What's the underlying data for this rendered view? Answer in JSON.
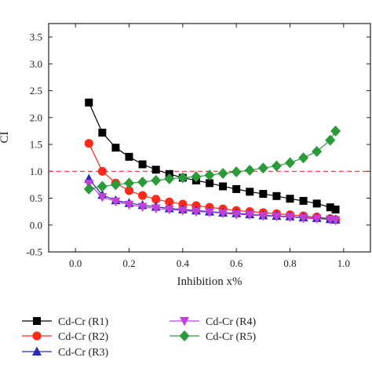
{
  "chart_data": {
    "type": "line",
    "xlabel": "Inhibition x%",
    "ylabel": "CI",
    "xlim": [
      -0.1,
      1.1
    ],
    "ylim": [
      -0.5,
      3.75
    ],
    "xticks": [
      "0.0",
      "0.2",
      "0.4",
      "0.6",
      "0.8",
      "1.0"
    ],
    "yticks": [
      "-0.5",
      "0.0",
      "0.5",
      "1.0",
      "1.5",
      "2.0",
      "2.5",
      "3.0",
      "3.5"
    ],
    "reference_line": {
      "y": 1.0,
      "color": "#e8392a",
      "style": "dashed"
    },
    "grid": false,
    "legend_position": "bottom",
    "series": [
      {
        "name": "Cd-Cr (R1)",
        "marker": "square",
        "color": "#000000",
        "x": [
          0.05,
          0.1,
          0.15,
          0.2,
          0.25,
          0.3,
          0.35,
          0.4,
          0.45,
          0.5,
          0.55,
          0.6,
          0.65,
          0.7,
          0.75,
          0.8,
          0.85,
          0.9,
          0.95,
          0.97
        ],
        "y": [
          2.28,
          1.72,
          1.44,
          1.27,
          1.13,
          1.03,
          0.95,
          0.88,
          0.83,
          0.78,
          0.72,
          0.67,
          0.62,
          0.58,
          0.54,
          0.49,
          0.45,
          0.4,
          0.33,
          0.29
        ]
      },
      {
        "name": "Cd-Cr (R2)",
        "marker": "circle",
        "color": "#ff2a1a",
        "x": [
          0.05,
          0.1,
          0.15,
          0.2,
          0.25,
          0.3,
          0.35,
          0.4,
          0.45,
          0.5,
          0.55,
          0.6,
          0.65,
          0.7,
          0.75,
          0.8,
          0.85,
          0.9,
          0.95,
          0.97
        ],
        "y": [
          1.52,
          1.0,
          0.78,
          0.64,
          0.55,
          0.48,
          0.43,
          0.39,
          0.36,
          0.33,
          0.3,
          0.27,
          0.25,
          0.23,
          0.21,
          0.19,
          0.17,
          0.15,
          0.12,
          0.1
        ]
      },
      {
        "name": "Cd-Cr (R3)",
        "marker": "triangle-up",
        "color": "#2a2ab8",
        "x": [
          0.05,
          0.1,
          0.15,
          0.2,
          0.25,
          0.3,
          0.35,
          0.4,
          0.45,
          0.5,
          0.55,
          0.6,
          0.65,
          0.7,
          0.75,
          0.8,
          0.85,
          0.9,
          0.95,
          0.97
        ],
        "y": [
          0.86,
          0.56,
          0.46,
          0.41,
          0.37,
          0.34,
          0.31,
          0.29,
          0.27,
          0.25,
          0.23,
          0.22,
          0.2,
          0.18,
          0.17,
          0.16,
          0.14,
          0.13,
          0.11,
          0.1
        ]
      },
      {
        "name": "Cd-Cr (R4)",
        "marker": "triangle-down",
        "color": "#c040d8",
        "x": [
          0.05,
          0.1,
          0.15,
          0.2,
          0.25,
          0.3,
          0.35,
          0.4,
          0.45,
          0.5,
          0.55,
          0.6,
          0.65,
          0.7,
          0.75,
          0.8,
          0.85,
          0.9,
          0.95,
          0.97
        ],
        "y": [
          0.77,
          0.52,
          0.44,
          0.38,
          0.34,
          0.31,
          0.29,
          0.27,
          0.25,
          0.24,
          0.22,
          0.2,
          0.19,
          0.17,
          0.16,
          0.15,
          0.13,
          0.12,
          0.1,
          0.09
        ]
      },
      {
        "name": "Cd-Cr (R5)",
        "marker": "diamond",
        "color": "#2a9a3a",
        "x": [
          0.05,
          0.1,
          0.15,
          0.2,
          0.25,
          0.3,
          0.35,
          0.4,
          0.45,
          0.5,
          0.55,
          0.6,
          0.65,
          0.7,
          0.75,
          0.8,
          0.85,
          0.9,
          0.95,
          0.97
        ],
        "y": [
          0.67,
          0.72,
          0.75,
          0.78,
          0.8,
          0.83,
          0.86,
          0.88,
          0.9,
          0.93,
          0.96,
          0.99,
          1.02,
          1.06,
          1.1,
          1.16,
          1.25,
          1.37,
          1.58,
          1.75
        ]
      }
    ]
  }
}
